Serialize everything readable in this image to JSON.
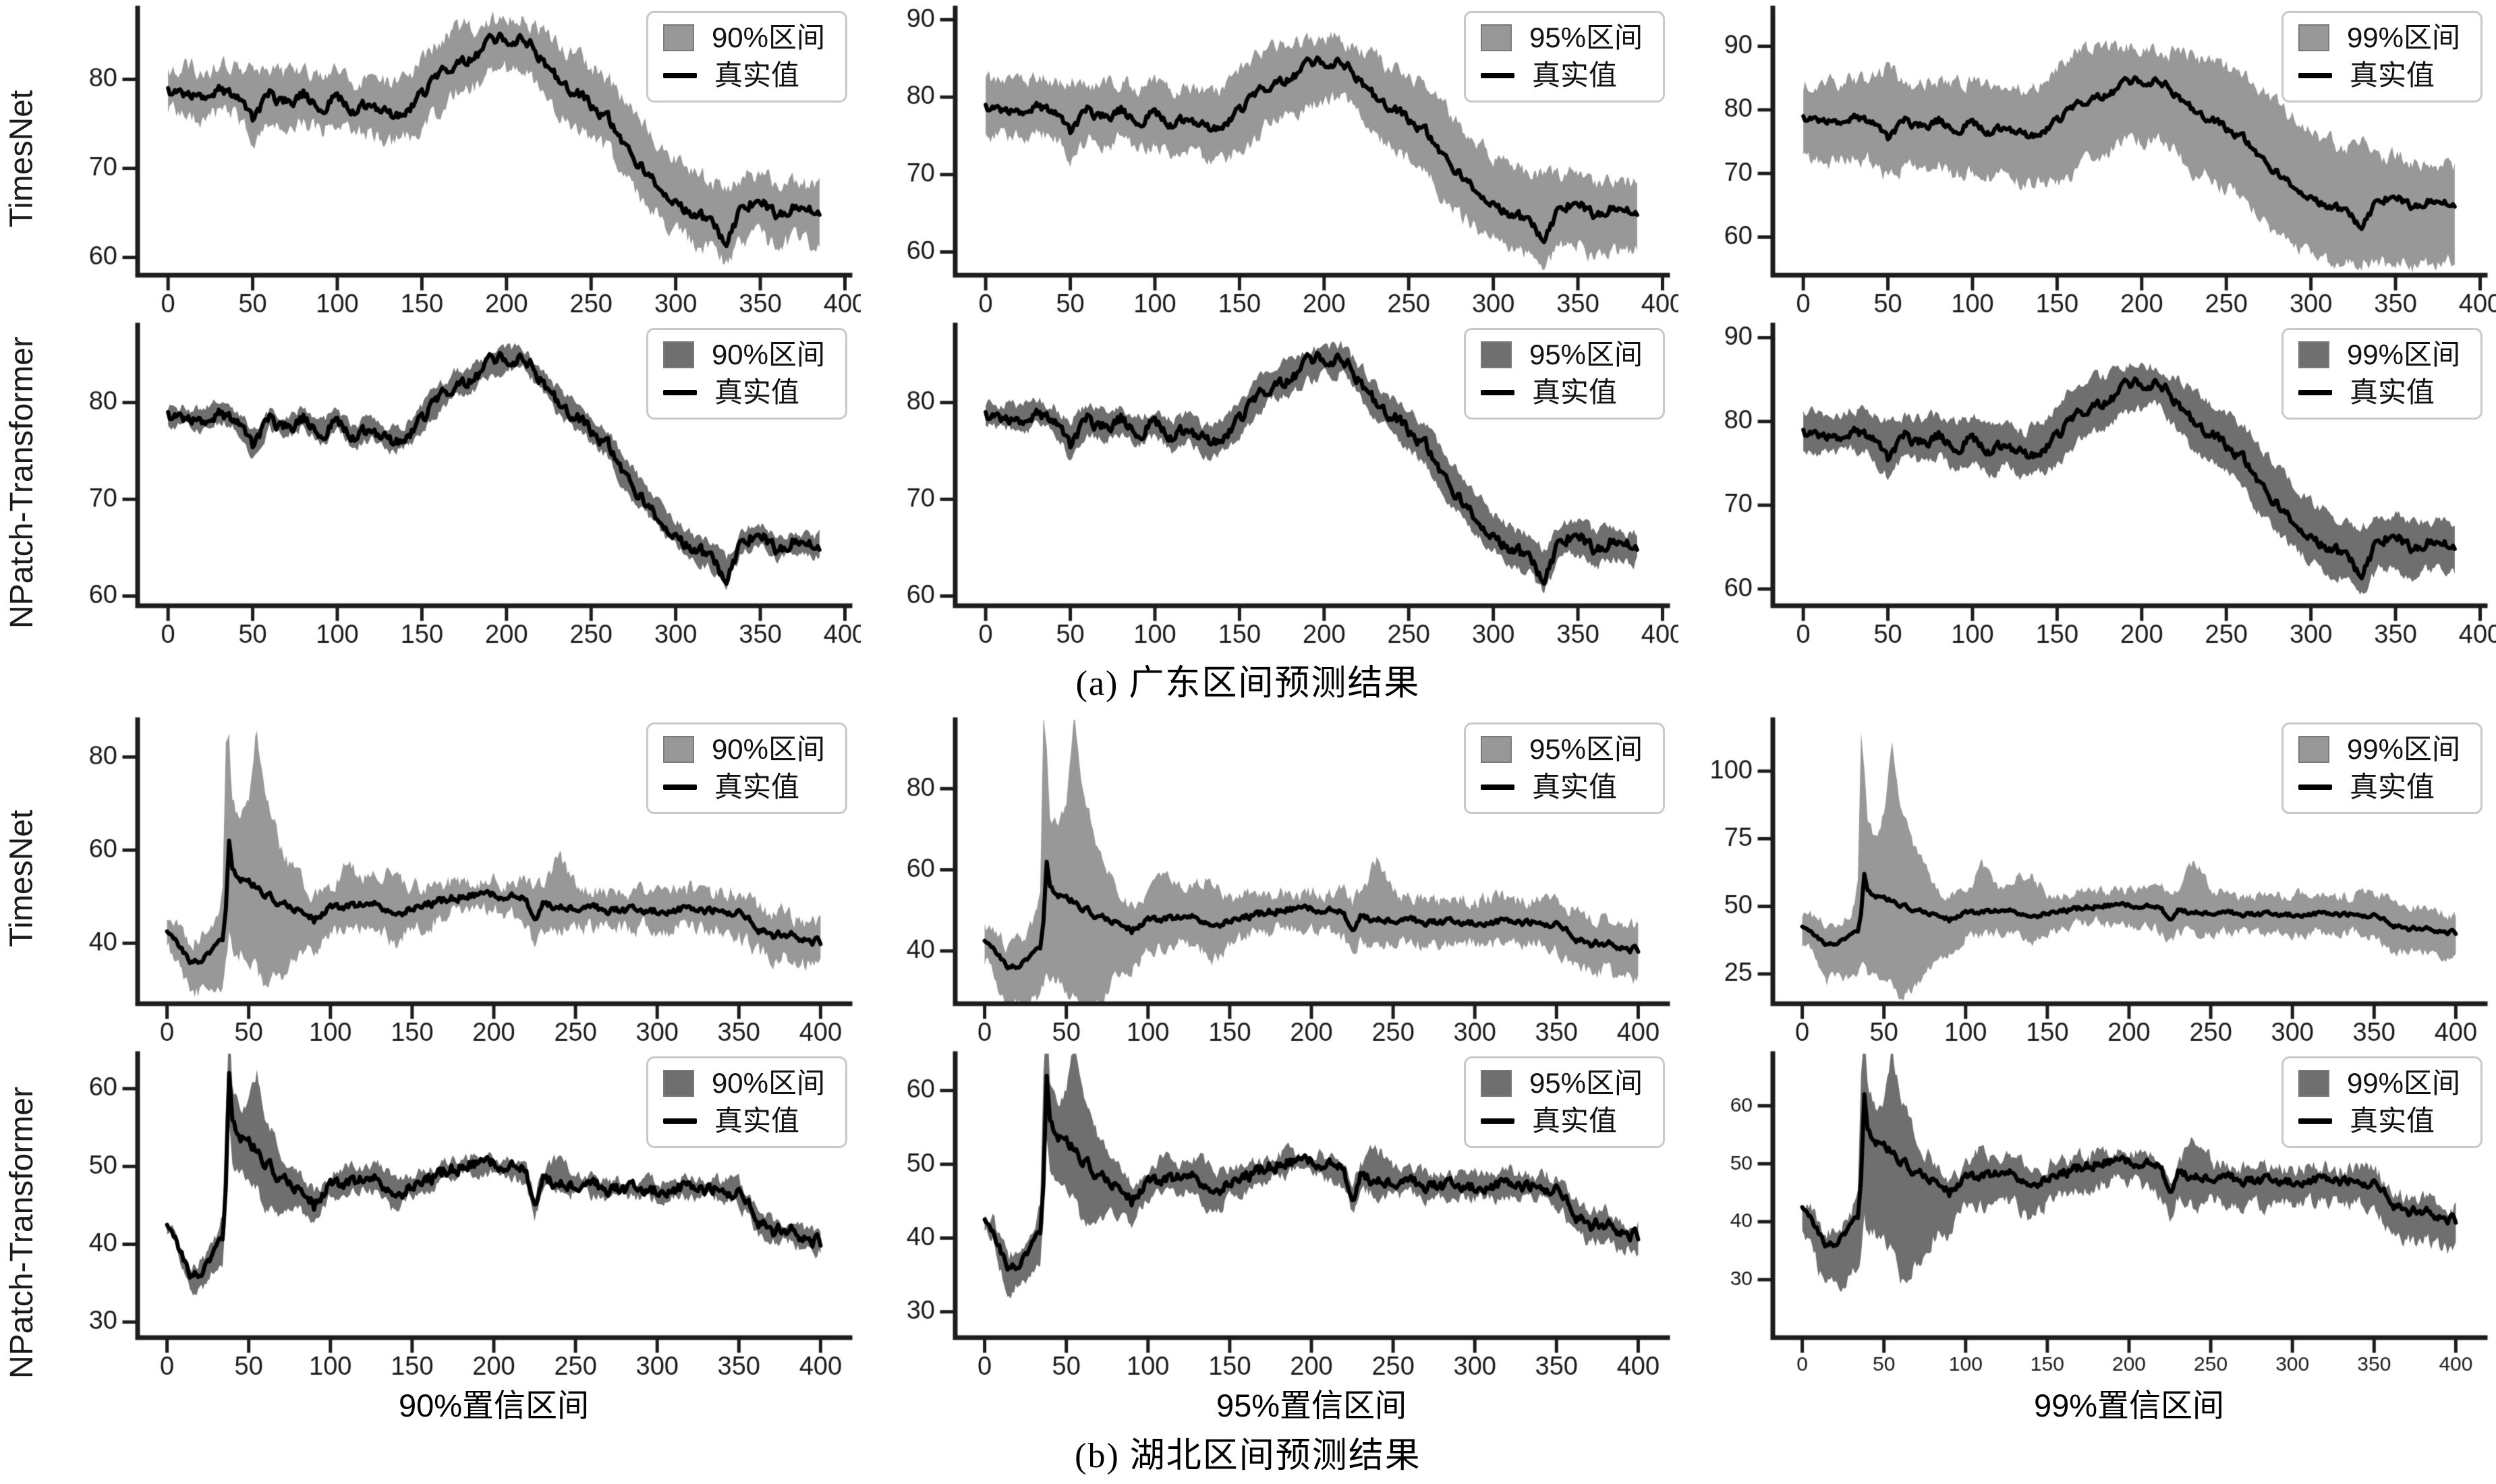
{
  "figure": {
    "captions": {
      "a": "(a) 广东区间预测结果",
      "b": "(b) 湖北区间预测结果"
    },
    "row_labels": [
      "TimesNet",
      "NPatch-Transformer",
      "TimesNet",
      "NPatch-Transformer"
    ],
    "legend": {
      "true_label": "真实值"
    },
    "xlabels": [
      "90%置信区间",
      "95%置信区间",
      "99%置信区间"
    ],
    "colors": {
      "timesnet_band": "#989898",
      "npatch_band": "#6f6f6f",
      "line": "#000000",
      "axis": "#1c1c1c",
      "tick_label": "#1a1a1a",
      "legend_border": "#c9c9c9"
    }
  },
  "chart_data": {
    "type": "line",
    "title": "",
    "description": "12 subplots: true-value line (真实值) with gray prediction-interval band (区间) for two models (TimesNet, NPatch-Transformer), two regions (a=广东, b=湖北), at 90%/95%/99% confidence levels.",
    "legend_position": "top-right",
    "grid": false,
    "regions": {
      "guangdong": {
        "xlim": [
          -18,
          403
        ],
        "xticks": [
          0,
          50,
          100,
          150,
          200,
          250,
          300,
          350,
          400
        ],
        "line_noise": 0.55,
        "seed": 7,
        "x": [
          0,
          10,
          20,
          30,
          40,
          50,
          60,
          70,
          80,
          90,
          100,
          110,
          120,
          130,
          140,
          150,
          160,
          170,
          180,
          190,
          200,
          210,
          220,
          230,
          240,
          250,
          260,
          270,
          280,
          290,
          300,
          310,
          320,
          330,
          340,
          350,
          360,
          370,
          380,
          385
        ],
        "true": [
          78.5,
          78.6,
          78.0,
          79.0,
          78.3,
          75.5,
          78.2,
          77.4,
          78.4,
          76.8,
          78.0,
          76.4,
          77.3,
          75.9,
          76.4,
          78.2,
          80.5,
          82.0,
          82.4,
          84.0,
          84.6,
          84.8,
          82.6,
          80.2,
          78.6,
          77.2,
          75.6,
          72.3,
          70.2,
          68.2,
          66.3,
          64.6,
          64.2,
          61.5,
          66.0,
          66.4,
          64.8,
          65.8,
          65.2,
          65.4
        ],
        "w_up": [
          2.5,
          2.9,
          3.0,
          2.8,
          2.9,
          5.0,
          2.8,
          3.1,
          2.8,
          3.4,
          3.0,
          3.4,
          3.2,
          3.3,
          3.4,
          3.8,
          4.0,
          3.5,
          3.4,
          2.5,
          2.4,
          2.0,
          2.9,
          3.8,
          3.9,
          4.3,
          4.4,
          5.2,
          4.8,
          4.8,
          4.7,
          4.9,
          4.3,
          6.5,
          3.0,
          3.1,
          3.2,
          2.7,
          2.8,
          2.6
        ],
        "w_dn": [
          2.5,
          2.4,
          2.4,
          2.6,
          2.3,
          2.5,
          2.7,
          2.6,
          2.8,
          2.8,
          2.8,
          2.8,
          2.9,
          2.9,
          3.0,
          3.7,
          4.0,
          3.5,
          3.4,
          3.5,
          3.6,
          3.3,
          3.6,
          3.7,
          3.6,
          3.7,
          3.6,
          3.8,
          3.7,
          3.7,
          3.3,
          3.1,
          3.2,
          2.0,
          4.0,
          3.9,
          3.8,
          3.8,
          3.7,
          3.6
        ]
      },
      "hubei": {
        "xlim": [
          -18,
          418
        ],
        "xticks": [
          0,
          50,
          100,
          150,
          200,
          250,
          300,
          350,
          400
        ],
        "line_noise": 0.7,
        "seed": 9,
        "x": [
          0,
          5,
          10,
          15,
          20,
          25,
          30,
          34,
          36,
          38,
          40,
          45,
          50,
          55,
          60,
          70,
          80,
          90,
          100,
          110,
          120,
          130,
          140,
          150,
          160,
          170,
          180,
          190,
          200,
          210,
          220,
          225,
          230,
          240,
          250,
          260,
          270,
          280,
          290,
          300,
          310,
          320,
          330,
          340,
          350,
          360,
          370,
          380,
          390,
          400
        ],
        "true": [
          42,
          41.5,
          38,
          36,
          36.5,
          37.5,
          39.5,
          40.5,
          47,
          62,
          56,
          54,
          53,
          52.5,
          50.5,
          48.5,
          47.5,
          45,
          47.5,
          47.8,
          48.2,
          48.3,
          45.5,
          47.8,
          48.4,
          49.3,
          50.1,
          50.4,
          50.3,
          49.8,
          49.2,
          45.2,
          48.4,
          48,
          47.8,
          47.4,
          47.2,
          47,
          47.1,
          47,
          47.2,
          47.4,
          47,
          47.1,
          46.6,
          43.5,
          41.5,
          42,
          40.8,
          40.3
        ],
        "w_up": [
          2.5,
          3,
          4,
          4,
          4.5,
          4,
          5,
          10,
          37,
          22,
          14,
          12,
          18,
          34,
          22,
          12,
          6,
          5,
          4,
          10,
          5,
          7,
          9,
          4,
          4,
          3.5,
          3,
          3,
          3,
          3.5,
          4,
          5,
          4,
          11,
          5,
          4,
          4,
          4,
          4,
          4,
          4.5,
          4,
          4,
          4,
          4.5,
          5,
          4.5,
          4.5,
          4,
          4
        ],
        "w_dn": [
          3,
          4,
          6,
          8,
          7,
          8,
          9,
          9,
          12,
          20,
          18,
          16,
          17,
          18,
          20,
          16,
          10,
          7,
          5,
          5,
          4.5,
          5,
          6,
          4.5,
          4,
          3.5,
          3.5,
          3.5,
          3.5,
          4,
          4.5,
          5,
          4.5,
          5,
          4.5,
          4,
          4,
          4,
          4,
          4,
          4,
          4,
          4,
          4,
          4.5,
          5.5,
          5,
          5,
          5.5,
          5
        ]
      }
    },
    "subplots": [
      {
        "id": "c0",
        "region": "guangdong",
        "model": "TimesNet",
        "legend_interval": "90%区间",
        "band": "light",
        "ylim": [
          58,
          88
        ],
        "yticks": [
          60,
          70,
          80
        ],
        "scale_up": 1.0,
        "scale_dn": 1.0,
        "seed": 101,
        "noise_band": 0.9,
        "tick_font": 38
      },
      {
        "id": "c1",
        "region": "guangdong",
        "model": "TimesNet",
        "legend_interval": "95%区间",
        "band": "light",
        "ylim": [
          57,
          91.5
        ],
        "yticks": [
          60,
          70,
          80,
          90
        ],
        "scale_up": 1.3,
        "scale_dn": 1.4,
        "seed": 102,
        "noise_band": 0.9,
        "tick_font": 38
      },
      {
        "id": "c2",
        "region": "guangdong",
        "model": "TimesNet",
        "legend_interval": "99%区间",
        "band": "light",
        "ylim": [
          54,
          96
        ],
        "yticks": [
          60,
          70,
          80,
          90
        ],
        "scale_up": 2.2,
        "scale_dn": 2.6,
        "seed": 103,
        "noise_band": 1.1,
        "tick_font": 38
      },
      {
        "id": "c3",
        "region": "guangdong",
        "model": "NPatch-Transformer",
        "legend_interval": "90%区间",
        "band": "dark",
        "ylim": [
          59,
          88
        ],
        "yticks": [
          60,
          70,
          80
        ],
        "scale_up": 0.35,
        "scale_dn": 0.35,
        "seed": 104,
        "noise_band": 0.45,
        "tick_font": 38
      },
      {
        "id": "c4",
        "region": "guangdong",
        "model": "NPatch-Transformer",
        "legend_interval": "95%区间",
        "band": "dark",
        "ylim": [
          59,
          88
        ],
        "yticks": [
          60,
          70,
          80
        ],
        "scale_up": 0.5,
        "scale_dn": 0.5,
        "seed": 105,
        "noise_band": 0.5,
        "tick_font": 38
      },
      {
        "id": "c5",
        "region": "guangdong",
        "model": "NPatch-Transformer",
        "legend_interval": "99%区间",
        "band": "dark",
        "ylim": [
          58,
          91.5
        ],
        "yticks": [
          60,
          70,
          80,
          90
        ],
        "scale_up": 0.9,
        "scale_dn": 0.9,
        "seed": 106,
        "noise_band": 0.6,
        "tick_font": 38
      },
      {
        "id": "c6",
        "region": "hubei",
        "model": "TimesNet",
        "legend_interval": "90%区间",
        "band": "light",
        "ylim": [
          27,
          88
        ],
        "yticks": [
          40,
          60,
          80
        ],
        "scale_up": 1.0,
        "scale_dn": 1.0,
        "seed": 107,
        "noise_band": 1.6,
        "tick_font": 38
      },
      {
        "id": "c7",
        "region": "hubei",
        "model": "TimesNet",
        "legend_interval": "95%区间",
        "band": "light",
        "ylim": [
          27,
          97
        ],
        "yticks": [
          40,
          60,
          80
        ],
        "scale_up": 1.35,
        "scale_dn": 1.35,
        "seed": 108,
        "noise_band": 1.6,
        "tick_font": 38
      },
      {
        "id": "c8",
        "region": "hubei",
        "model": "TimesNet",
        "legend_interval": "99%区间",
        "band": "light",
        "ylim": [
          14,
          119
        ],
        "yticks": [
          25,
          50,
          75,
          100
        ],
        "scale_up": 1.75,
        "scale_dn": 1.75,
        "seed": 109,
        "noise_band": 1.8,
        "tick_font": 38
      },
      {
        "id": "c9",
        "region": "hubei",
        "model": "NPatch-Transformer",
        "legend_interval": "90%区间",
        "band": "dark",
        "ylim": [
          28,
          64.5
        ],
        "yticks": [
          30,
          40,
          50,
          60
        ],
        "scale_up": 0.28,
        "scale_dn": 0.3,
        "seed": 110,
        "noise_band": 0.7,
        "tick_font": 38
      },
      {
        "id": "c10",
        "region": "hubei",
        "model": "NPatch-Transformer",
        "legend_interval": "95%区间",
        "band": "dark",
        "ylim": [
          26.5,
          65
        ],
        "yticks": [
          30,
          40,
          50,
          60
        ],
        "scale_up": 0.4,
        "scale_dn": 0.42,
        "seed": 111,
        "noise_band": 0.8,
        "tick_font": 38
      },
      {
        "id": "c11",
        "region": "hubei",
        "model": "NPatch-Transformer",
        "legend_interval": "99%区间",
        "band": "dark",
        "ylim": [
          20,
          69
        ],
        "yticks": [
          30,
          40,
          50,
          60
        ],
        "scale_up": 0.5,
        "scale_dn": 1.0,
        "seed": 112,
        "noise_band": 1.2,
        "tick_font": 30
      }
    ]
  }
}
